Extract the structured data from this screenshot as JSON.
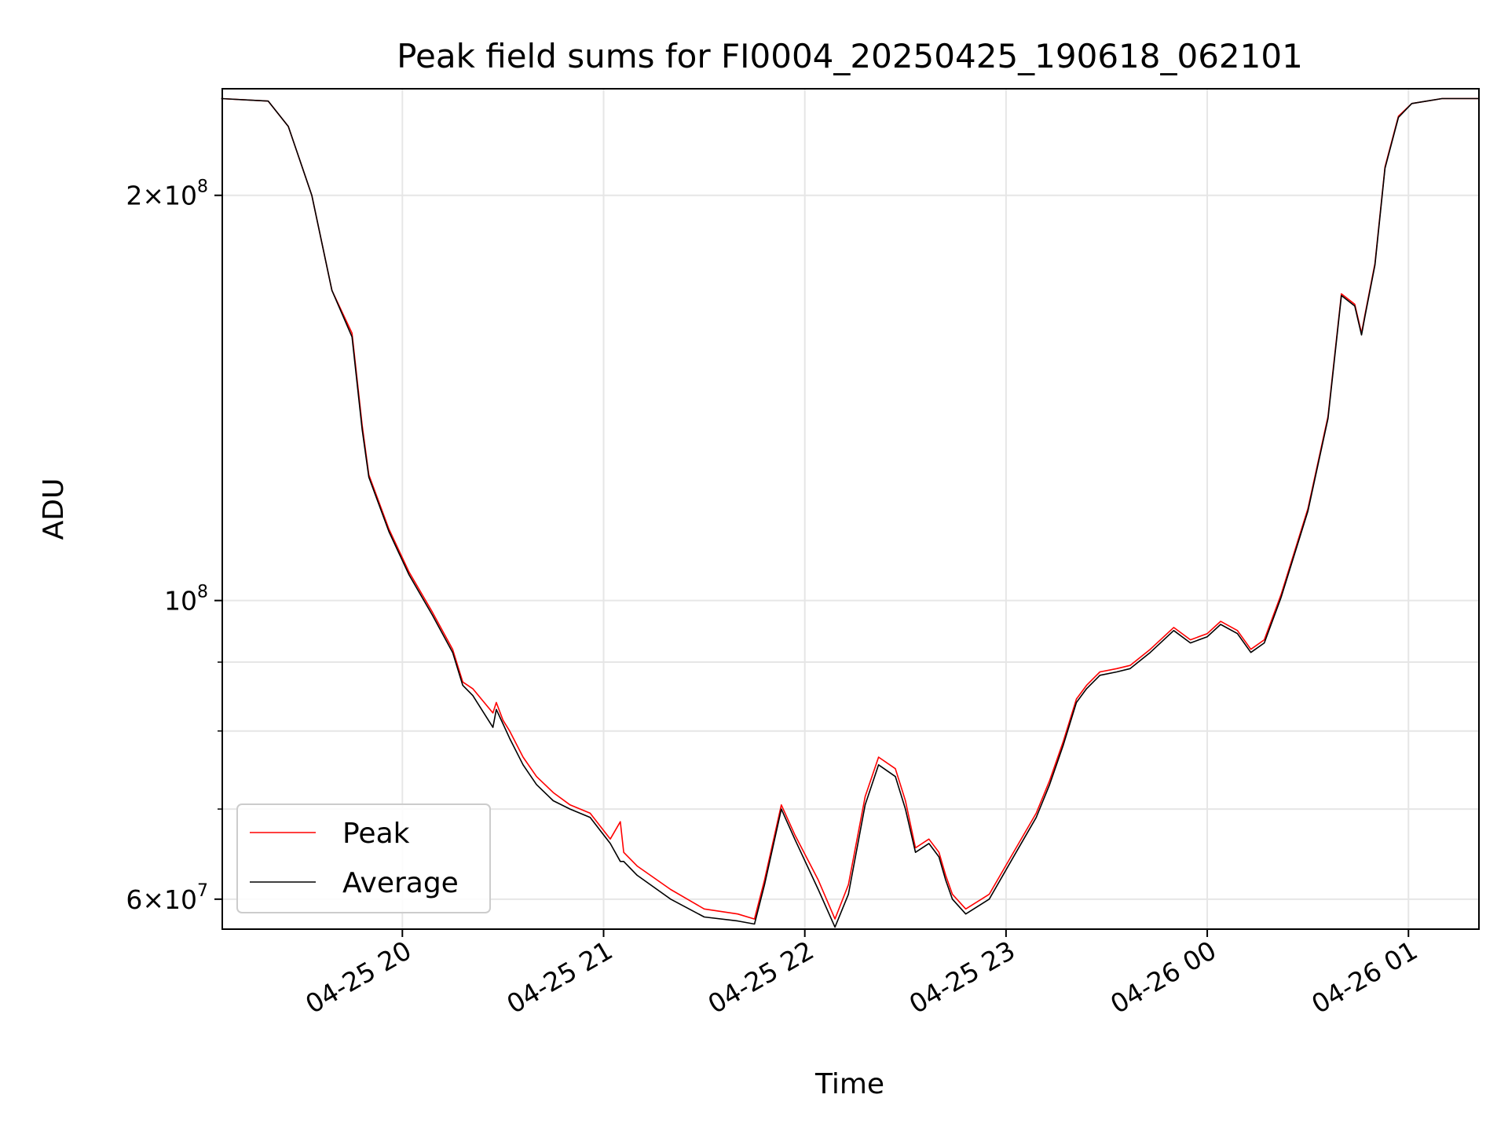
{
  "chart_data": {
    "type": "line",
    "title": "Peak field sums for FI0004_20250425_190618_062101",
    "xlabel": "Time",
    "ylabel": "ADU",
    "x_scale": "time",
    "y_scale": "log",
    "xlim": [
      "2025-04-25 19:06:18",
      "2025-04-26 01:21:01"
    ],
    "ylim": [
      57000000,
      240000000
    ],
    "x_ticks": [
      {
        "value": "2025-04-25 20:00",
        "label": "04-25 20"
      },
      {
        "value": "2025-04-25 21:00",
        "label": "04-25 21"
      },
      {
        "value": "2025-04-25 22:00",
        "label": "04-25 22"
      },
      {
        "value": "2025-04-25 23:00",
        "label": "04-25 23"
      },
      {
        "value": "2025-04-26 00:00",
        "label": "04-26 00"
      },
      {
        "value": "2025-04-26 01:00",
        "label": "04-26 01"
      }
    ],
    "y_ticks_major": [
      {
        "value": 200000000,
        "mantissa": "2",
        "times": "×",
        "base": "10",
        "exp": "8"
      },
      {
        "value": 100000000,
        "mantissa": "",
        "times": "",
        "base": "10",
        "exp": "8"
      },
      {
        "value": 60000000,
        "mantissa": "6",
        "times": "×",
        "base": "10",
        "exp": "7"
      }
    ],
    "y_ticks_minor": [
      70000000,
      80000000,
      90000000
    ],
    "grid": true,
    "legend_position": "lower-left",
    "colors": {
      "Peak": "#ff0000",
      "Average": "#000000",
      "grid": "#e6e6e6"
    },
    "x": [
      "2025-04-25 19:06",
      "2025-04-25 19:20",
      "2025-04-25 19:26",
      "2025-04-25 19:33",
      "2025-04-25 19:39",
      "2025-04-25 19:45",
      "2025-04-25 19:48",
      "2025-04-25 19:50",
      "2025-04-25 19:56",
      "2025-04-25 20:02",
      "2025-04-25 20:09",
      "2025-04-25 20:15",
      "2025-04-25 20:18",
      "2025-04-25 20:21",
      "2025-04-25 20:27",
      "2025-04-25 20:28",
      "2025-04-25 20:30",
      "2025-04-25 20:32",
      "2025-04-25 20:36",
      "2025-04-25 20:40",
      "2025-04-25 20:45",
      "2025-04-25 20:50",
      "2025-04-25 20:56",
      "2025-04-25 21:02",
      "2025-04-25 21:05",
      "2025-04-25 21:06",
      "2025-04-25 21:10",
      "2025-04-25 21:20",
      "2025-04-25 21:30",
      "2025-04-25 21:40",
      "2025-04-25 21:45",
      "2025-04-25 21:48",
      "2025-04-25 21:53",
      "2025-04-25 21:57",
      "2025-04-25 22:04",
      "2025-04-25 22:09",
      "2025-04-25 22:13",
      "2025-04-25 22:18",
      "2025-04-25 22:22",
      "2025-04-25 22:27",
      "2025-04-25 22:30",
      "2025-04-25 22:33",
      "2025-04-25 22:37",
      "2025-04-25 22:40",
      "2025-04-25 22:42",
      "2025-04-25 22:44",
      "2025-04-25 22:48",
      "2025-04-25 22:55",
      "2025-04-25 23:03",
      "2025-04-25 23:09",
      "2025-04-25 23:13",
      "2025-04-25 23:17",
      "2025-04-25 23:21",
      "2025-04-25 23:24",
      "2025-04-25 23:28",
      "2025-04-25 23:33",
      "2025-04-25 23:37",
      "2025-04-25 23:43",
      "2025-04-25 23:50",
      "2025-04-25 23:55",
      "2025-04-26 00:00",
      "2025-04-26 00:04",
      "2025-04-26 00:09",
      "2025-04-26 00:13",
      "2025-04-26 00:17",
      "2025-04-26 00:22",
      "2025-04-26 00:30",
      "2025-04-26 00:36",
      "2025-04-26 00:40",
      "2025-04-26 00:44",
      "2025-04-26 00:46",
      "2025-04-26 00:47",
      "2025-04-26 00:50",
      "2025-04-26 00:53",
      "2025-04-26 00:57",
      "2025-04-26 01:01",
      "2025-04-26 01:10",
      "2025-04-26 01:21"
    ],
    "series": [
      {
        "name": "Peak",
        "values": [
          236000000,
          235000000,
          225000000,
          200000000,
          170000000,
          158000000,
          135000000,
          124000000,
          113000000,
          105000000,
          98000000,
          92000000,
          87000000,
          86000000,
          82500000,
          84000000,
          81500000,
          80000000,
          76500000,
          74000000,
          72000000,
          70500000,
          69500000,
          66500000,
          68500000,
          65000000,
          63500000,
          61000000,
          59000000,
          58500000,
          58000000,
          62000000,
          70500000,
          67000000,
          62000000,
          58000000,
          61500000,
          71500000,
          76500000,
          75000000,
          71000000,
          65500000,
          66500000,
          65000000,
          62500000,
          60500000,
          59000000,
          60500000,
          65500000,
          69500000,
          73500000,
          78500000,
          84500000,
          86500000,
          88500000,
          89000000,
          89500000,
          92000000,
          95500000,
          93500000,
          94500000,
          96500000,
          95000000,
          92000000,
          93500000,
          101000000,
          117000000,
          137000000,
          169000000,
          166000000,
          158000000,
          163000000,
          178000000,
          210000000,
          229000000,
          234000000,
          236000000,
          236000000
        ]
      },
      {
        "name": "Average",
        "values": [
          236000000,
          235000000,
          225000000,
          200000000,
          170000000,
          157000000,
          134000000,
          123500000,
          112500000,
          104500000,
          97500000,
          91500000,
          86500000,
          85000000,
          80500000,
          83000000,
          81000000,
          79000000,
          75500000,
          73000000,
          71000000,
          70000000,
          69000000,
          66000000,
          64000000,
          64000000,
          62500000,
          60000000,
          58200000,
          57800000,
          57500000,
          61500000,
          70000000,
          66500000,
          61000000,
          57200000,
          60500000,
          70500000,
          75500000,
          74000000,
          70000000,
          65000000,
          66000000,
          64500000,
          62000000,
          60000000,
          58500000,
          60000000,
          65000000,
          69000000,
          73000000,
          78000000,
          84000000,
          86000000,
          88000000,
          88500000,
          89000000,
          91500000,
          95000000,
          93000000,
          94000000,
          96000000,
          94500000,
          91500000,
          93000000,
          100500000,
          116500000,
          136500000,
          168500000,
          165500000,
          157500000,
          162500000,
          177500000,
          209500000,
          228500000,
          234000000,
          236000000,
          236000000
        ]
      }
    ]
  }
}
